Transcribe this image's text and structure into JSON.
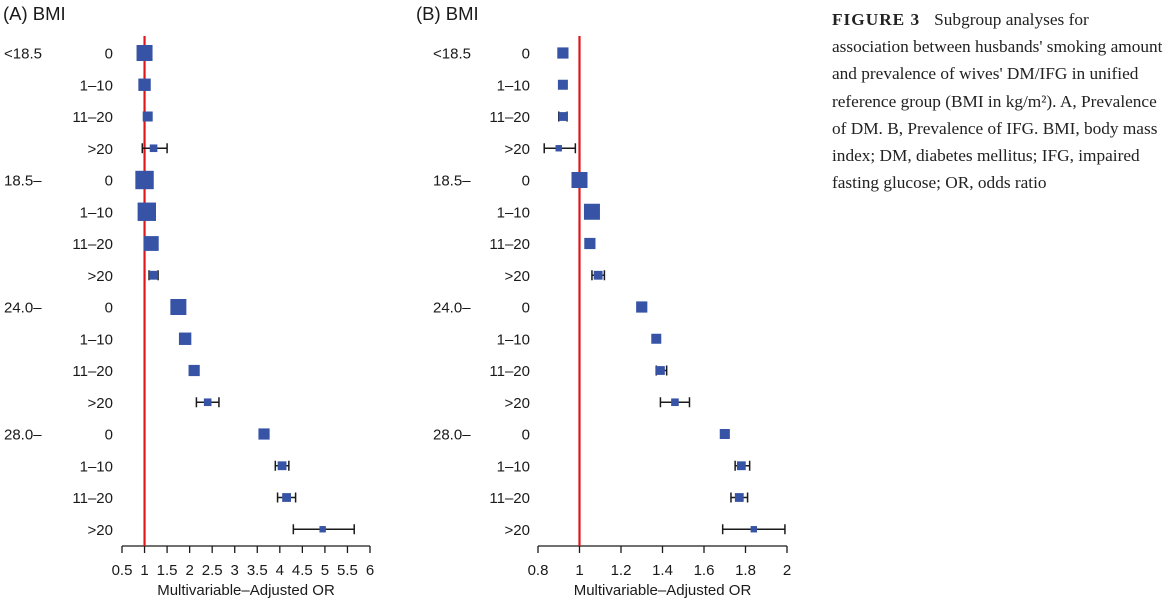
{
  "figure": {
    "caption_label": "FIGURE 3",
    "caption_text": "Subgroup analyses for association between husbands' smoking amount and prevalence of wives' DM/IFG in unified reference group (BMI in kg/m²). A, Prevalence of DM. B, Prevalence of IFG. BMI, body mass index; DM, diabetes mellitus; IFG, impaired fasting glucose; OR, odds ratio"
  },
  "colors": {
    "marker": "#3753a6",
    "reference_line": "#e0161b",
    "axis": "#1a1a1a"
  },
  "chart_data": [
    {
      "type": "forest",
      "panel": "(A)",
      "group_title": "BMI",
      "xlabel": "Multivariable–Adjusted OR",
      "xlim": [
        0.5,
        6
      ],
      "xticks": [
        0.5,
        1,
        1.5,
        2,
        2.5,
        3,
        3.5,
        4,
        4.5,
        5,
        5.5,
        6
      ],
      "xtick_labels": [
        "0.5",
        "1",
        "1.5",
        "2",
        "2.5",
        "3",
        "3.5",
        "4",
        "4.5",
        "5",
        "5.5",
        "6"
      ],
      "reference_line": 1,
      "groups": [
        "<18.5",
        "18.5–",
        "24.0–",
        "28.0–"
      ],
      "rows": [
        {
          "group": "<18.5",
          "category": "0",
          "or": 1.0,
          "lo": 1.0,
          "hi": 1.0,
          "weight": 1.0
        },
        {
          "group": "",
          "category": "1–10",
          "or": 1.0,
          "lo": 1.0,
          "hi": 1.0,
          "weight": 0.7
        },
        {
          "group": "",
          "category": "11–20",
          "or": 1.07,
          "lo": 1.05,
          "hi": 1.1,
          "weight": 0.5
        },
        {
          "group": "",
          "category": ">20",
          "or": 1.2,
          "lo": 0.95,
          "hi": 1.5,
          "weight": 0.3
        },
        {
          "group": "18.5–",
          "category": "0",
          "or": 1.0,
          "lo": 1.0,
          "hi": 1.0,
          "weight": 1.2
        },
        {
          "group": "",
          "category": "1–10",
          "or": 1.05,
          "lo": 1.05,
          "hi": 1.05,
          "weight": 1.2
        },
        {
          "group": "",
          "category": "11–20",
          "or": 1.15,
          "lo": 1.15,
          "hi": 1.15,
          "weight": 0.9
        },
        {
          "group": "",
          "category": ">20",
          "or": 1.2,
          "lo": 1.1,
          "hi": 1.3,
          "weight": 0.4
        },
        {
          "group": "24.0–",
          "category": "0",
          "or": 1.75,
          "lo": 1.75,
          "hi": 1.75,
          "weight": 1.0
        },
        {
          "group": "",
          "category": "1–10",
          "or": 1.9,
          "lo": 1.9,
          "hi": 1.9,
          "weight": 0.7
        },
        {
          "group": "",
          "category": "11–20",
          "or": 2.1,
          "lo": 2.1,
          "hi": 2.1,
          "weight": 0.6
        },
        {
          "group": "",
          "category": ">20",
          "or": 2.4,
          "lo": 2.15,
          "hi": 2.65,
          "weight": 0.3
        },
        {
          "group": "28.0–",
          "category": "0",
          "or": 3.65,
          "lo": 3.6,
          "hi": 3.7,
          "weight": 0.6
        },
        {
          "group": "",
          "category": "1–10",
          "or": 4.05,
          "lo": 3.9,
          "hi": 4.2,
          "weight": 0.4
        },
        {
          "group": "",
          "category": "11–20",
          "or": 4.15,
          "lo": 3.95,
          "hi": 4.35,
          "weight": 0.4
        },
        {
          "group": "",
          "category": ">20",
          "or": 4.95,
          "lo": 4.3,
          "hi": 5.65,
          "weight": 0.2
        }
      ]
    },
    {
      "type": "forest",
      "panel": "(B)",
      "group_title": "BMI",
      "xlabel": "Multivariable–Adjusted OR",
      "xlim": [
        0.8,
        2
      ],
      "xticks": [
        0.8,
        1,
        1.2,
        1.4,
        1.6,
        1.8,
        2
      ],
      "xtick_labels": [
        "0.8",
        "1",
        "1.2",
        "1.4",
        "1.6",
        "1.8",
        "2"
      ],
      "reference_line": 1,
      "groups": [
        "<18.5",
        "18.5–",
        "24.0–",
        "28.0–"
      ],
      "rows": [
        {
          "group": "<18.5",
          "category": "0",
          "or": 0.92,
          "lo": 0.92,
          "hi": 0.92,
          "weight": 0.6
        },
        {
          "group": "",
          "category": "1–10",
          "or": 0.92,
          "lo": 0.92,
          "hi": 0.92,
          "weight": 0.5
        },
        {
          "group": "",
          "category": "11–20",
          "or": 0.92,
          "lo": 0.9,
          "hi": 0.94,
          "weight": 0.4
        },
        {
          "group": "",
          "category": ">20",
          "or": 0.9,
          "lo": 0.83,
          "hi": 0.98,
          "weight": 0.2
        },
        {
          "group": "18.5–",
          "category": "0",
          "or": 1.0,
          "lo": 1.0,
          "hi": 1.0,
          "weight": 1.0
        },
        {
          "group": "",
          "category": "1–10",
          "or": 1.06,
          "lo": 1.06,
          "hi": 1.06,
          "weight": 1.0
        },
        {
          "group": "",
          "category": "11–20",
          "or": 1.05,
          "lo": 1.05,
          "hi": 1.05,
          "weight": 0.6
        },
        {
          "group": "",
          "category": ">20",
          "or": 1.09,
          "lo": 1.06,
          "hi": 1.12,
          "weight": 0.4
        },
        {
          "group": "24.0–",
          "category": "0",
          "or": 1.3,
          "lo": 1.3,
          "hi": 1.3,
          "weight": 0.6
        },
        {
          "group": "",
          "category": "1–10",
          "or": 1.37,
          "lo": 1.37,
          "hi": 1.37,
          "weight": 0.5
        },
        {
          "group": "",
          "category": "11–20",
          "or": 1.39,
          "lo": 1.37,
          "hi": 1.42,
          "weight": 0.4
        },
        {
          "group": "",
          "category": ">20",
          "or": 1.46,
          "lo": 1.39,
          "hi": 1.53,
          "weight": 0.3
        },
        {
          "group": "28.0–",
          "category": "0",
          "or": 1.7,
          "lo": 1.69,
          "hi": 1.72,
          "weight": 0.5
        },
        {
          "group": "",
          "category": "1–10",
          "or": 1.78,
          "lo": 1.75,
          "hi": 1.82,
          "weight": 0.4
        },
        {
          "group": "",
          "category": "11–20",
          "or": 1.77,
          "lo": 1.73,
          "hi": 1.81,
          "weight": 0.4
        },
        {
          "group": "",
          "category": ">20",
          "or": 1.84,
          "lo": 1.69,
          "hi": 1.99,
          "weight": 0.2
        }
      ]
    }
  ]
}
